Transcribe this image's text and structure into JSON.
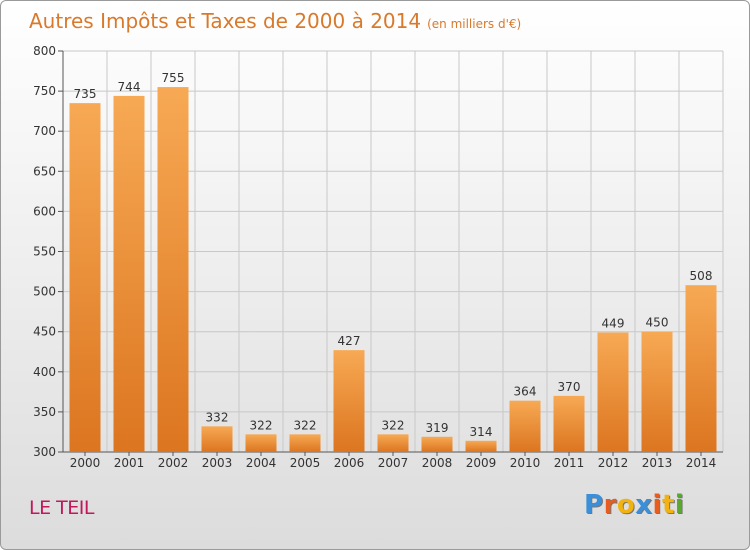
{
  "chart_data": {
    "type": "bar",
    "title": "Autres Impôts et Taxes de 2000 à 2014",
    "subtitle": "(en milliers d'€)",
    "categories": [
      "2000",
      "2001",
      "2002",
      "2003",
      "2004",
      "2005",
      "2006",
      "2007",
      "2008",
      "2009",
      "2010",
      "2011",
      "2012",
      "2013",
      "2014"
    ],
    "values": [
      735,
      744,
      755,
      332,
      322,
      322,
      427,
      322,
      319,
      314,
      364,
      370,
      449,
      450,
      508
    ],
    "ylim": [
      300,
      800
    ],
    "yticks": [
      300,
      350,
      400,
      450,
      500,
      550,
      600,
      650,
      700,
      750,
      800
    ],
    "xlabel": "",
    "ylabel": "",
    "grid": true,
    "colors": {
      "bar_top": "#f7a954",
      "bar_bottom": "#dc7520",
      "grid": "#c8c8c8",
      "title": "#d9792b",
      "commune": "#c2185b"
    }
  },
  "footer": {
    "commune": "LE TEIL",
    "logo": {
      "text": "Proxiti",
      "letters": [
        {
          "ch": "P",
          "color": "#3b8ed8"
        },
        {
          "ch": "r",
          "color": "#e85d1f"
        },
        {
          "ch": "o",
          "color": "#f2b312"
        },
        {
          "ch": "x",
          "color": "#3b8ed8"
        },
        {
          "ch": "i",
          "color": "#e85d1f"
        },
        {
          "ch": "t",
          "color": "#f2b312"
        },
        {
          "ch": "i",
          "color": "#5aa830"
        }
      ]
    }
  }
}
